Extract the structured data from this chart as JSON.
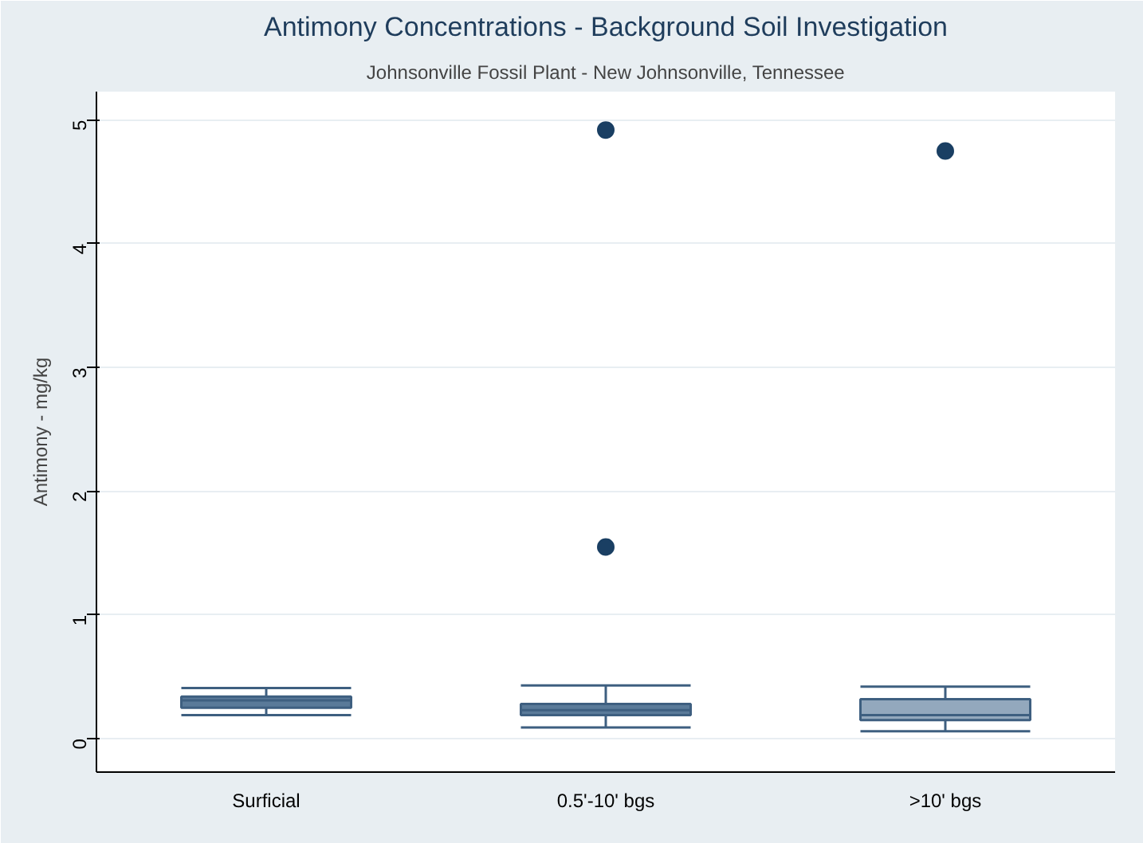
{
  "chart_data": {
    "type": "box",
    "title": "Antimony Concentrations - Background Soil Investigation",
    "subtitle": "Johnsonville Fossil Plant - New Johnsonville, Tennessee",
    "ylabel": "Antimony - mg/kg",
    "categories": [
      "Surficial",
      "0.5'-10' bgs",
      ">10' bgs"
    ],
    "colors": [
      "#5a7a99",
      "#5a7a99",
      "#93a8bd"
    ],
    "boxes": [
      {
        "low": 0.19,
        "q1": 0.25,
        "median": 0.31,
        "q3": 0.34,
        "high": 0.41
      },
      {
        "low": 0.09,
        "q1": 0.19,
        "median": 0.23,
        "q3": 0.28,
        "high": 0.43,
        "outliers": [
          4.92,
          1.55
        ]
      },
      {
        "low": 0.06,
        "q1": 0.15,
        "median": 0.19,
        "q3": 0.32,
        "high": 0.42,
        "outliers": [
          4.75
        ]
      }
    ],
    "ylim": [
      -0.27,
      5.23
    ],
    "yticks": [
      0,
      1,
      2,
      3,
      4,
      5
    ],
    "grid": "y"
  }
}
